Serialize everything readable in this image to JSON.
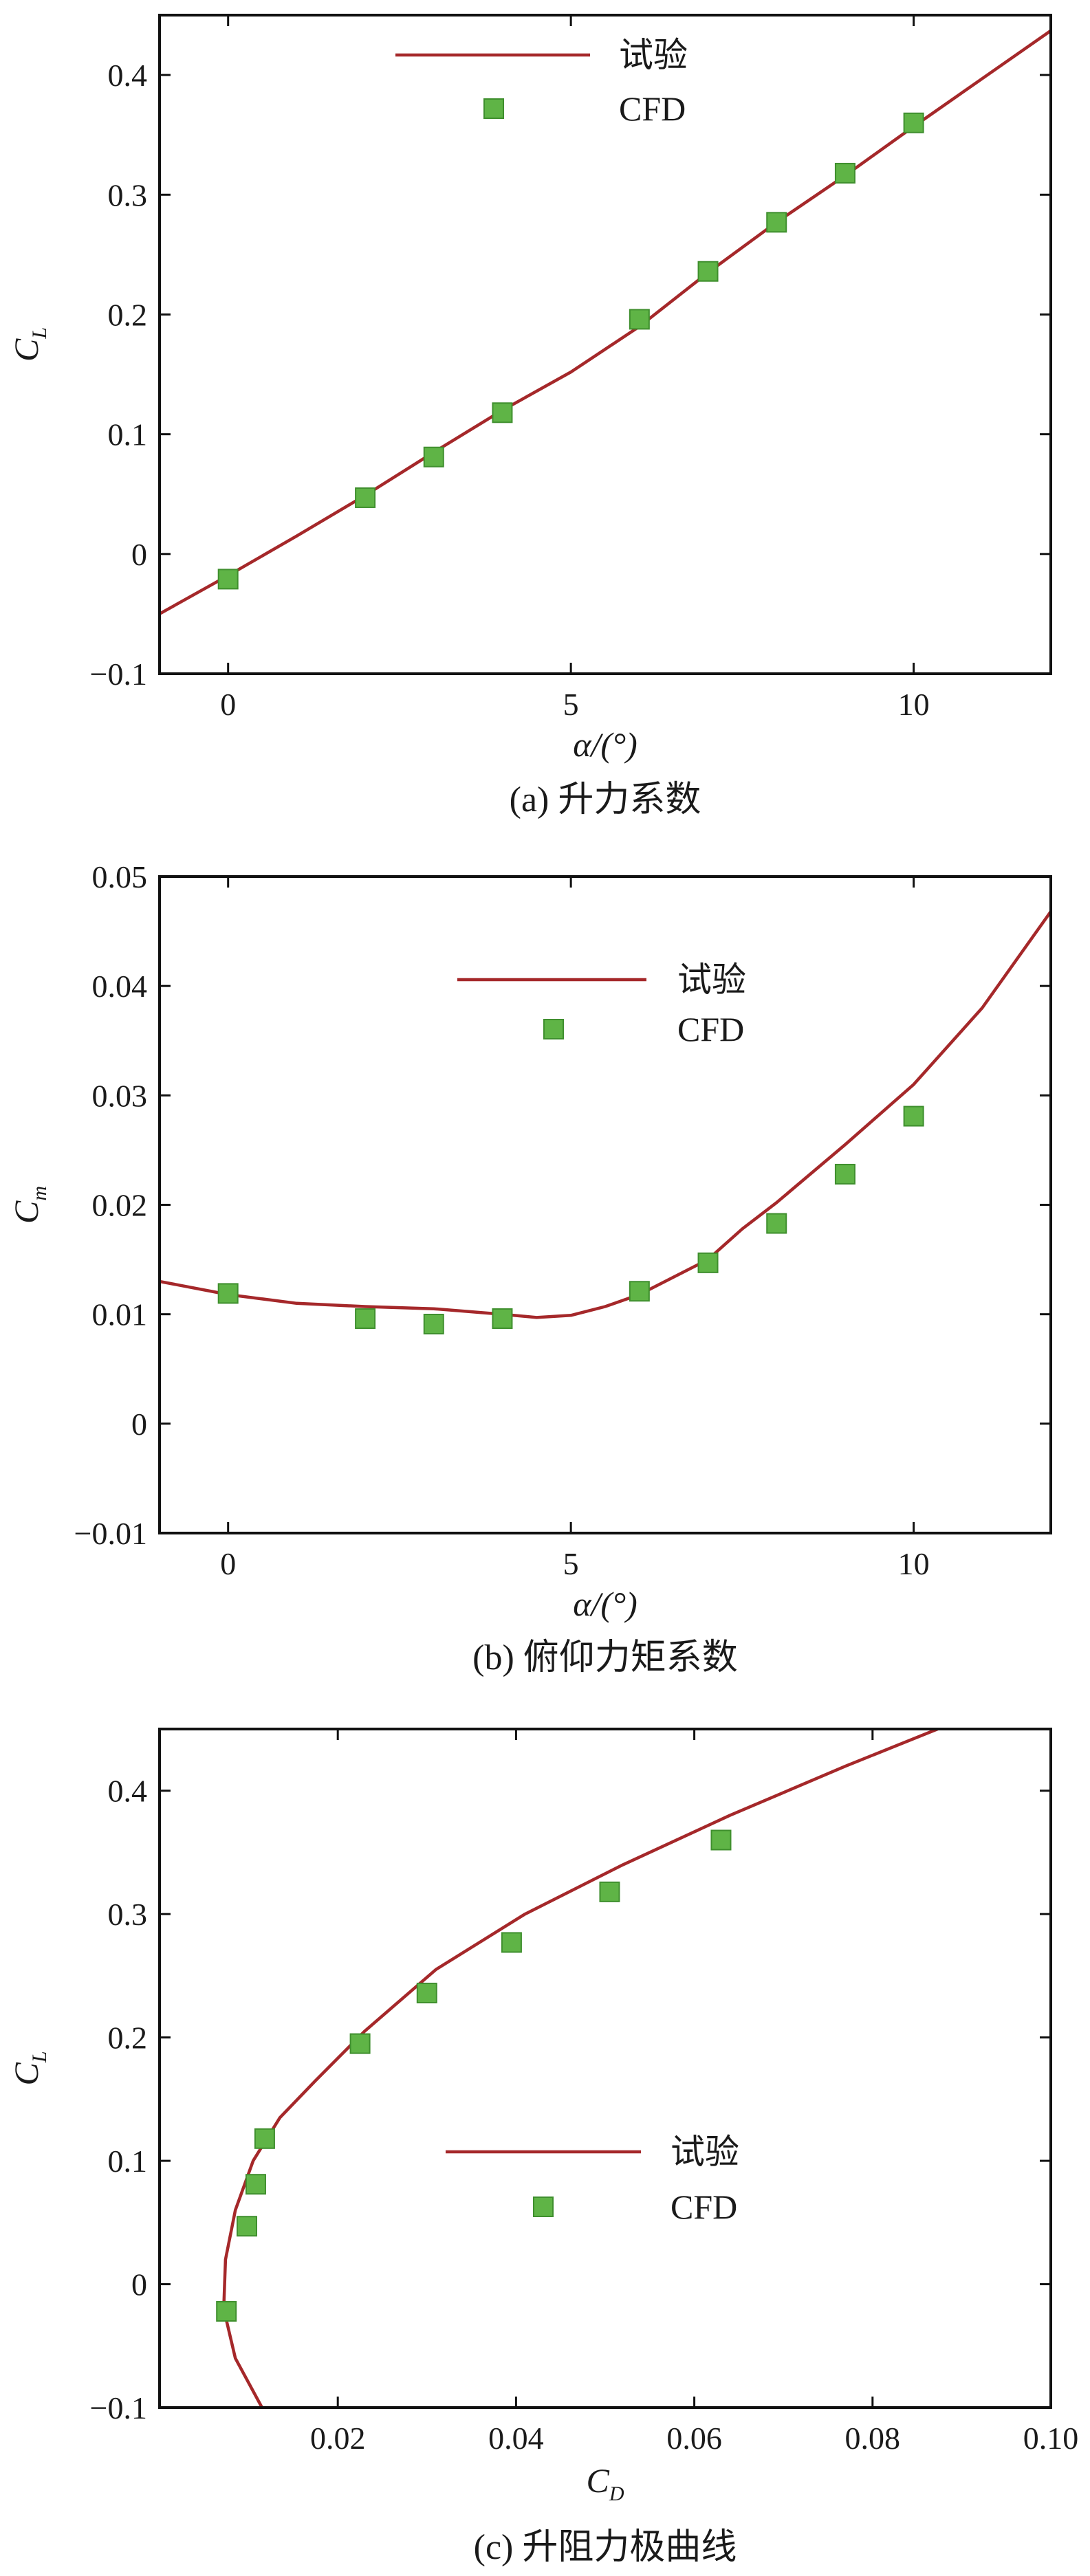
{
  "colors": {
    "line": "#a5282a",
    "marker": "#5fb446",
    "marker_edge": "#3f8f2e",
    "axis": "#111111"
  },
  "chart_data": [
    {
      "id": "a",
      "type": "line",
      "caption": "(a) 升力系数",
      "xlabel": "α/(°)",
      "ylabel_main": "C",
      "ylabel_sub": "L",
      "xlim": [
        -1,
        12
      ],
      "ylim": [
        -0.1,
        0.45
      ],
      "xticks": [
        0,
        5,
        10
      ],
      "xtick_labels": [
        "0",
        "5",
        "10"
      ],
      "yticks": [
        -0.1,
        0,
        0.1,
        0.2,
        0.3,
        0.4
      ],
      "ytick_labels": [
        "−0.1",
        "0",
        "0.1",
        "0.2",
        "0.3",
        "0.4"
      ],
      "legend": {
        "position": "top-center",
        "line_label": "试验",
        "marker_label": "CFD"
      },
      "series": [
        {
          "name": "试验",
          "kind": "line",
          "x": [
            -1,
            0,
            1,
            2,
            3,
            4,
            5,
            6,
            7,
            8,
            9,
            10,
            11,
            12
          ],
          "y": [
            -0.05,
            -0.018,
            0.015,
            0.049,
            0.085,
            0.12,
            0.152,
            0.19,
            0.235,
            0.277,
            0.316,
            0.357,
            0.397,
            0.437
          ]
        },
        {
          "name": "CFD",
          "kind": "marker",
          "x": [
            0,
            2,
            3,
            4,
            6,
            7,
            8,
            9,
            10
          ],
          "y": [
            -0.021,
            0.047,
            0.081,
            0.118,
            0.196,
            0.236,
            0.277,
            0.318,
            0.36
          ]
        }
      ]
    },
    {
      "id": "b",
      "type": "line",
      "caption": "(b) 俯仰力矩系数",
      "xlabel": "α/(°)",
      "ylabel_main": "C",
      "ylabel_sub": "m",
      "xlim": [
        -1,
        12
      ],
      "ylim": [
        -0.01,
        0.05
      ],
      "xticks": [
        0,
        5,
        10
      ],
      "xtick_labels": [
        "0",
        "5",
        "10"
      ],
      "yticks": [
        -0.01,
        0,
        0.01,
        0.02,
        0.03,
        0.04,
        0.05
      ],
      "ytick_labels": [
        "−0.01",
        "0",
        "0.01",
        "0.02",
        "0.03",
        "0.04",
        "0.05"
      ],
      "legend": {
        "position": "upper-center",
        "line_label": "试验",
        "marker_label": "CFD"
      },
      "series": [
        {
          "name": "试验",
          "kind": "line",
          "x": [
            -1,
            0,
            1,
            2,
            3,
            4,
            4.5,
            5,
            5.5,
            6,
            7,
            7.5,
            8,
            9,
            10,
            11,
            12
          ],
          "y": [
            0.013,
            0.0118,
            0.011,
            0.0107,
            0.0105,
            0.01,
            0.0097,
            0.0099,
            0.0107,
            0.0118,
            0.015,
            0.0178,
            0.0202,
            0.0255,
            0.031,
            0.038,
            0.0468
          ]
        },
        {
          "name": "CFD",
          "kind": "marker",
          "x": [
            0,
            2,
            3,
            4,
            6,
            7,
            8,
            9,
            10
          ],
          "y": [
            0.0119,
            0.0096,
            0.0091,
            0.0096,
            0.0121,
            0.0147,
            0.0183,
            0.0228,
            0.0281
          ]
        }
      ]
    },
    {
      "id": "c",
      "type": "line",
      "caption": "(c) 升阻力极曲线",
      "xlabel_main": "C",
      "xlabel_sub": "D",
      "ylabel_main": "C",
      "ylabel_sub": "L",
      "xlim": [
        0,
        0.1
      ],
      "ylim": [
        -0.1,
        0.45
      ],
      "xticks": [
        0.02,
        0.04,
        0.06,
        0.08,
        0.1
      ],
      "xtick_labels": [
        "0.02",
        "0.04",
        "0.06",
        "0.08",
        "0.10"
      ],
      "yticks": [
        -0.1,
        0,
        0.1,
        0.2,
        0.3,
        0.4
      ],
      "ytick_labels": [
        "−0.1",
        "0",
        "0.1",
        "0.2",
        "0.3",
        "0.4"
      ],
      "legend": {
        "position": "lower-right",
        "line_label": "试验",
        "marker_label": "CFD"
      },
      "series": [
        {
          "name": "试验",
          "kind": "line",
          "x": [
            0.0115,
            0.0085,
            0.0072,
            0.0074,
            0.0085,
            0.0105,
            0.0135,
            0.0175,
            0.023,
            0.031,
            0.041,
            0.052,
            0.064,
            0.077,
            0.088
          ],
          "y": [
            -0.1,
            -0.06,
            -0.02,
            0.02,
            0.06,
            0.1,
            0.135,
            0.165,
            0.205,
            0.255,
            0.3,
            0.34,
            0.38,
            0.42,
            0.452
          ]
        },
        {
          "name": "CFD",
          "kind": "marker",
          "x": [
            0.0075,
            0.0098,
            0.0108,
            0.0118,
            0.0225,
            0.03,
            0.0395,
            0.0505,
            0.063
          ],
          "y": [
            -0.022,
            0.047,
            0.081,
            0.118,
            0.195,
            0.236,
            0.277,
            0.318,
            0.36
          ]
        }
      ]
    }
  ]
}
